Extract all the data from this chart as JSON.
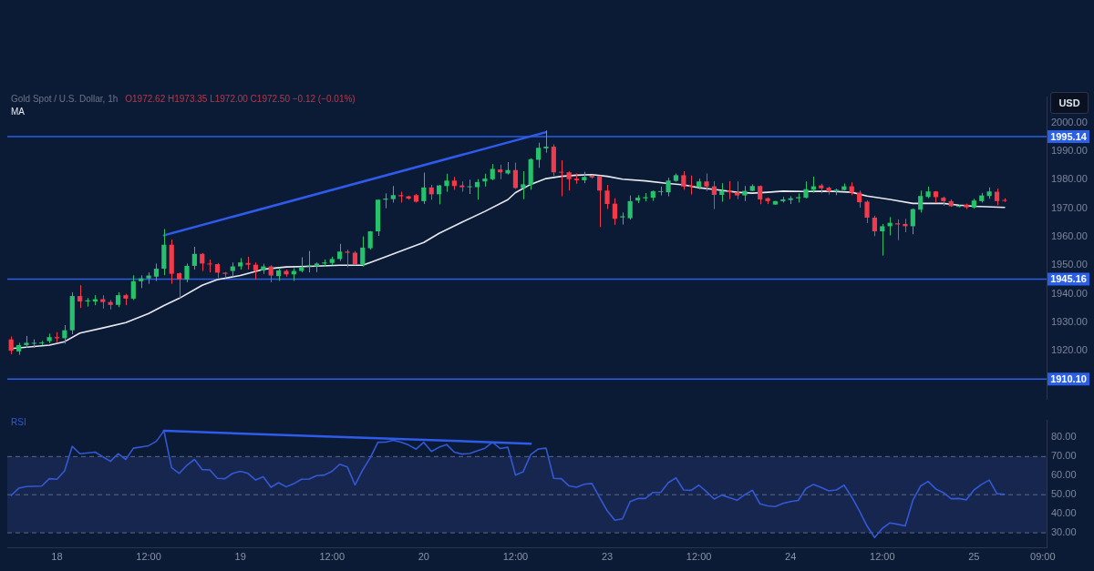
{
  "chart_data": [
    {
      "type": "candlestick",
      "title": "Gold Spot / U.S. Dollar, 1h",
      "annotations": [
        "O1972.62 H1973.35 L1972.00 C1972.50 −0.12 (−0.01%)"
      ],
      "ylabel": "USD",
      "categories": [
        null,
        null,
        null,
        null,
        null,
        null,
        null,
        null,
        null,
        null,
        null,
        null,
        null,
        null,
        null,
        null,
        null,
        null,
        null,
        null,
        null,
        null,
        null,
        null,
        null,
        null,
        null,
        null,
        null,
        null,
        null,
        null,
        null,
        null,
        null,
        null,
        null,
        null,
        null,
        null,
        null,
        null,
        null,
        null,
        null,
        null,
        null,
        null,
        null,
        null,
        null,
        null,
        null,
        null,
        null,
        null,
        null,
        null,
        null,
        null,
        null,
        null,
        null,
        null,
        null,
        null,
        null,
        null,
        null,
        null,
        null,
        null,
        null,
        null,
        null,
        null,
        null,
        null,
        null,
        null,
        null,
        null,
        null,
        null,
        null,
        null,
        null,
        null,
        null,
        null,
        null,
        null,
        null,
        null,
        null,
        null,
        null,
        null,
        null,
        null,
        null,
        null,
        null,
        null,
        null,
        null,
        null,
        null,
        null,
        null,
        null,
        null,
        null,
        null,
        null,
        null,
        null,
        null,
        null,
        null,
        null,
        null,
        null,
        null,
        null,
        null,
        null,
        null,
        null,
        null,
        null,
        null,
        null,
        null,
        null,
        null
      ],
      "ohlc": [
        [
          1924.0,
          1925.0,
          1918.8,
          1920.0
        ],
        [
          1919.8,
          1922.8,
          1918.6,
          1922.0
        ],
        [
          1922.0,
          1925.2,
          1921.0,
          1922.8
        ],
        [
          1922.5,
          1924.0,
          1921.0,
          1922.8
        ],
        [
          1922.6,
          1923.5,
          1922.0,
          1922.9
        ],
        [
          1923.4,
          1926.0,
          1922.7,
          1924.8
        ],
        [
          1924.8,
          1926.5,
          1923.0,
          1924.4
        ],
        [
          1924.4,
          1929.0,
          1922.5,
          1927.2
        ],
        [
          1927.2,
          1940.5,
          1925.8,
          1939.2
        ],
        [
          1939.2,
          1943.0,
          1935.0,
          1937.3
        ],
        [
          1937.3,
          1938.5,
          1935.5,
          1937.7
        ],
        [
          1937.3,
          1939.5,
          1936.0,
          1938.1
        ],
        [
          1938.1,
          1939.5,
          1934.8,
          1937.1
        ],
        [
          1937.1,
          1937.8,
          1934.5,
          1936.1
        ],
        [
          1936.1,
          1940.5,
          1935.3,
          1939.5
        ],
        [
          1939.5,
          1940.0,
          1936.0,
          1938.3
        ],
        [
          1938.3,
          1946.5,
          1937.8,
          1944.4
        ],
        [
          1944.4,
          1946.5,
          1942.0,
          1945.4
        ],
        [
          1945.4,
          1947.5,
          1943.5,
          1946.4
        ],
        [
          1946.0,
          1950.6,
          1944.5,
          1948.8
        ],
        [
          1948.8,
          1962.7,
          1946.5,
          1957.2
        ],
        [
          1957.2,
          1959.0,
          1943.5,
          1947.0
        ],
        [
          1947.2,
          1947.5,
          1938.5,
          1945.0
        ],
        [
          1945.0,
          1950.6,
          1944.0,
          1949.8
        ],
        [
          1949.8,
          1956.5,
          1948.5,
          1954.0
        ],
        [
          1954.0,
          1954.3,
          1948.0,
          1950.6
        ],
        [
          1950.6,
          1952.0,
          1947.5,
          1950.4
        ],
        [
          1950.4,
          1950.8,
          1945.5,
          1947.4
        ],
        [
          1947.4,
          1947.6,
          1945.5,
          1947.0
        ],
        [
          1948.0,
          1951.0,
          1946.0,
          1949.6
        ],
        [
          1949.6,
          1952.5,
          1948.5,
          1951.0
        ],
        [
          1950.8,
          1953.0,
          1948.5,
          1950.2
        ],
        [
          1950.2,
          1951.0,
          1945.0,
          1948.2
        ],
        [
          1948.2,
          1950.5,
          1947.0,
          1949.6
        ],
        [
          1949.6,
          1950.0,
          1944.0,
          1946.4
        ],
        [
          1946.2,
          1949.0,
          1944.5,
          1948.2
        ],
        [
          1948.0,
          1948.5,
          1946.0,
          1946.8
        ],
        [
          1946.8,
          1949.0,
          1944.5,
          1948.0
        ],
        [
          1948.0,
          1952.8,
          1947.5,
          1949.4
        ],
        [
          1949.6,
          1955.0,
          1947.5,
          1950.0
        ],
        [
          1949.6,
          1951.0,
          1947.6,
          1950.6
        ],
        [
          1950.6,
          1952.0,
          1949.5,
          1951.0
        ],
        [
          1950.8,
          1953.0,
          1950.0,
          1952.2
        ],
        [
          1952.2,
          1957.5,
          1951.5,
          1954.8
        ],
        [
          1954.8,
          1955.5,
          1949.3,
          1954.4
        ],
        [
          1954.4,
          1955.0,
          1950.0,
          1950.4
        ],
        [
          1950.2,
          1960.1,
          1949.5,
          1956.2
        ],
        [
          1956.0,
          1962.0,
          1955.5,
          1961.9
        ],
        [
          1961.9,
          1973.0,
          1960.3,
          1973.0
        ],
        [
          1973.0,
          1975.2,
          1970.0,
          1973.4
        ],
        [
          1973.2,
          1977.8,
          1972.0,
          1974.6
        ],
        [
          1974.6,
          1975.8,
          1972.0,
          1974.2
        ],
        [
          1974.2,
          1974.4,
          1973.0,
          1973.4
        ],
        [
          1974.6,
          1975.0,
          1972.0,
          1972.3
        ],
        [
          1972.5,
          1982.5,
          1971.5,
          1977.3
        ],
        [
          1977.3,
          1978.2,
          1973.0,
          1974.9
        ],
        [
          1974.9,
          1978.2,
          1971.4,
          1978.0
        ],
        [
          1977.8,
          1982.1,
          1975.8,
          1979.7
        ],
        [
          1979.7,
          1981.0,
          1976.5,
          1977.8
        ],
        [
          1978.0,
          1979.4,
          1975.8,
          1977.4
        ],
        [
          1977.4,
          1980.0,
          1975.0,
          1977.7
        ],
        [
          1977.4,
          1980.2,
          1973.0,
          1979.2
        ],
        [
          1979.4,
          1982.1,
          1977.6,
          1980.4
        ],
        [
          1980.2,
          1985.5,
          1979.8,
          1983.8
        ],
        [
          1983.6,
          1985.3,
          1980.2,
          1982.6
        ],
        [
          1982.2,
          1986.2,
          1981.8,
          1983.4
        ],
        [
          1983.4,
          1986.0,
          1976.8,
          1977.1
        ],
        [
          1977.1,
          1983.0,
          1973.2,
          1978.4
        ],
        [
          1978.2,
          1987.5,
          1976.5,
          1987.2
        ],
        [
          1987.0,
          1993.0,
          1984.2,
          1991.2
        ],
        [
          1991.0,
          1997.3,
          1989.5,
          1991.6
        ],
        [
          1991.6,
          1992.4,
          1981.3,
          1982.6
        ],
        [
          1982.8,
          1986.8,
          1974.2,
          1982.6
        ],
        [
          1982.6,
          1982.9,
          1976.2,
          1980.2
        ],
        [
          1980.4,
          1982.2,
          1978.6,
          1979.8
        ],
        [
          1979.8,
          1982.8,
          1978.8,
          1981.0
        ],
        [
          1981.4,
          1981.6,
          1980.4,
          1980.8
        ],
        [
          1981.2,
          1981.4,
          1963.4,
          1976.2
        ],
        [
          1976.2,
          1978.2,
          1969.7,
          1971.5
        ],
        [
          1971.6,
          1973.5,
          1964.2,
          1966.3
        ],
        [
          1966.8,
          1968.5,
          1964.3,
          1967.2
        ],
        [
          1966.5,
          1974.5,
          1966.0,
          1972.5
        ],
        [
          1972.7,
          1974.6,
          1971.8,
          1973.7
        ],
        [
          1973.5,
          1975.3,
          1972.4,
          1973.9
        ],
        [
          1973.7,
          1976.2,
          1972.6,
          1976.0
        ],
        [
          1975.9,
          1977.6,
          1974.5,
          1976.0
        ],
        [
          1975.6,
          1980.7,
          1974.2,
          1979.7
        ],
        [
          1979.6,
          1982.2,
          1979.3,
          1981.6
        ],
        [
          1981.6,
          1983.0,
          1976.5,
          1977.6
        ],
        [
          1978.0,
          1981.5,
          1974.8,
          1977.6
        ],
        [
          1977.4,
          1980.4,
          1976.6,
          1979.4
        ],
        [
          1979.4,
          1982.2,
          1976.0,
          1977.6
        ],
        [
          1977.7,
          1979.5,
          1969.7,
          1974.7
        ],
        [
          1974.7,
          1978.8,
          1972.3,
          1976.1
        ],
        [
          1976.2,
          1979.5,
          1973.2,
          1975.6
        ],
        [
          1975.6,
          1979.4,
          1973.2,
          1974.5
        ],
        [
          1974.5,
          1977.8,
          1972.5,
          1976.1
        ],
        [
          1976.1,
          1978.4,
          1976.0,
          1977.8
        ],
        [
          1977.8,
          1978.0,
          1971.4,
          1973.1
        ],
        [
          1973.5,
          1973.8,
          1971.5,
          1972.5
        ],
        [
          1971.3,
          1972.6,
          1971.2,
          1972.5
        ],
        [
          1972.5,
          1974.0,
          1972.0,
          1973.1
        ],
        [
          1972.9,
          1974.2,
          1971.5,
          1973.5
        ],
        [
          1973.5,
          1975.2,
          1972.0,
          1973.9
        ],
        [
          1973.7,
          1979.4,
          1973.5,
          1976.7
        ],
        [
          1976.5,
          1981.1,
          1975.4,
          1977.7
        ],
        [
          1978.0,
          1978.6,
          1975.2,
          1977.0
        ],
        [
          1977.2,
          1977.6,
          1974.8,
          1975.9
        ],
        [
          1975.9,
          1976.9,
          1974.6,
          1976.5
        ],
        [
          1976.4,
          1978.7,
          1976.3,
          1977.7
        ],
        [
          1977.7,
          1979.1,
          1974.6,
          1975.5
        ],
        [
          1975.5,
          1976.2,
          1970.2,
          1972.1
        ],
        [
          1972.3,
          1972.8,
          1964.8,
          1966.7
        ],
        [
          1966.7,
          1967.4,
          1960.2,
          1961.9
        ],
        [
          1961.9,
          1964.5,
          1953.4,
          1963.7
        ],
        [
          1963.7,
          1966.9,
          1960.5,
          1964.9
        ],
        [
          1964.7,
          1966.1,
          1958.8,
          1964.3
        ],
        [
          1964.5,
          1966.3,
          1961.6,
          1963.7
        ],
        [
          1963.7,
          1969.9,
          1960.9,
          1969.7
        ],
        [
          1969.5,
          1976.2,
          1968.5,
          1974.3
        ],
        [
          1974.0,
          1977.6,
          1973.5,
          1975.9
        ],
        [
          1975.9,
          1976.1,
          1971.8,
          1973.9
        ],
        [
          1973.7,
          1974.1,
          1970.9,
          1972.5
        ],
        [
          1972.5,
          1973.1,
          1970.5,
          1970.7
        ],
        [
          1970.7,
          1971.1,
          1970.3,
          1970.8
        ],
        [
          1971.3,
          1971.6,
          1969.7,
          1970.3
        ],
        [
          1970.3,
          1973.3,
          1969.9,
          1972.7
        ],
        [
          1972.5,
          1975.4,
          1972.0,
          1974.5
        ],
        [
          1974.3,
          1977.3,
          1973.3,
          1975.9
        ],
        [
          1975.8,
          1976.9,
          1971.1,
          1972.5
        ],
        [
          1972.9,
          1973.5,
          1972.2,
          1972.6
        ],
        null,
        null,
        null,
        null,
        null
      ],
      "colors": [
        "#f23a4a",
        "#26c26b",
        "#26c26b",
        "#26c26b",
        "#26c26b",
        "#26c26b",
        "#f23a4a",
        "#26c26b",
        "#26c26b",
        "#f23a4a",
        "#26c26b",
        "#26c26b",
        "#f23a4a",
        "#f23a4a",
        "#26c26b",
        "#f23a4a",
        "#26c26b",
        "#26c26b",
        "#26c26b",
        "#26c26b",
        "#26c26b",
        "#f23a4a",
        "#f23a4a",
        "#26c26b",
        "#26c26b",
        "#f23a4a",
        "#f23a4a",
        "#f23a4a",
        "#f23a4a",
        "#26c26b",
        "#26c26b",
        "#f23a4a",
        "#f23a4a",
        "#26c26b",
        "#f23a4a",
        "#26c26b",
        "#f23a4a",
        "#26c26b",
        "#26c26b",
        "#26c26b",
        "#26c26b",
        "#26c26b",
        "#26c26b",
        "#26c26b",
        "#f23a4a",
        "#f23a4a",
        "#26c26b",
        "#26c26b",
        "#26c26b",
        "#26c26b",
        "#26c26b",
        "#f23a4a",
        "#f23a4a",
        "#f23a4a",
        "#26c26b",
        "#f23a4a",
        "#26c26b",
        "#26c26b",
        "#f23a4a",
        "#f23a4a",
        "#26c26b",
        "#26c26b",
        "#26c26b",
        "#26c26b",
        "#f23a4a",
        "#26c26b",
        "#f23a4a",
        "#26c26b",
        "#26c26b",
        "#26c26b",
        "#26c26b",
        "#f23a4a",
        "#f23a4a",
        "#f23a4a",
        "#f23a4a",
        "#26c26b",
        "#f23a4a",
        "#f23a4a",
        "#f23a4a",
        "#f23a4a",
        "#26c26b",
        "#26c26b",
        "#26c26b",
        "#26c26b",
        "#26c26b",
        "#26c26b",
        "#26c26b",
        "#26c26b",
        "#f23a4a",
        "#f23a4a",
        "#26c26b",
        "#f23a4a",
        "#f23a4a",
        "#26c26b",
        "#f23a4a",
        "#f23a4a",
        "#26c26b",
        "#26c26b",
        "#f23a4a",
        "#f23a4a",
        "#26c26b",
        "#26c26b",
        "#26c26b",
        "#26c26b",
        "#26c26b",
        "#26c26b",
        "#f23a4a",
        "#f23a4a",
        "#26c26b",
        "#26c26b",
        "#f23a4a",
        "#f23a4a",
        "#f23a4a",
        "#f23a4a",
        "#26c26b",
        "#26c26b",
        "#f23a4a",
        "#f23a4a",
        "#26c26b",
        "#26c26b",
        "#26c26b",
        "#f23a4a",
        "#f23a4a",
        "#f23a4a",
        "#26c26b",
        "#f23a4a",
        "#26c26b",
        "#26c26b",
        "#26c26b",
        "#f23a4a",
        "#f23a4a",
        null,
        null,
        null,
        null,
        null
      ],
      "series": [
        {
          "name": "MA",
          "type": "line",
          "color": "#e8e9ef",
          "values": [
            1920.8,
            null,
            null,
            null,
            null,
            1922.0,
            null,
            1923.2,
            null,
            1926.2,
            null,
            null,
            1928.0,
            null,
            null,
            1929.9,
            null,
            null,
            1933.1,
            null,
            1935.9,
            null,
            1938.4,
            null,
            null,
            1943.0,
            null,
            1945.0,
            null,
            null,
            1946.4,
            null,
            null,
            1948.6,
            null,
            null,
            1949.4,
            null,
            null,
            1949.6,
            null,
            null,
            null,
            1950.0,
            null,
            null,
            1950.0,
            1951.0,
            null,
            1953.0,
            null,
            null,
            1956.0,
            null,
            1958.0,
            null,
            1961.2,
            null,
            null,
            1965.1,
            null,
            null,
            1968.9,
            null,
            null,
            1973.0,
            1975.5,
            null,
            1978.4,
            null,
            1980.4,
            null,
            1981.2,
            null,
            1981.6,
            null,
            1981.8,
            null,
            1981.2,
            null,
            1980.2,
            null,
            null,
            1979.6,
            null,
            null,
            1978.7,
            null,
            1978.2,
            null,
            1977.2,
            null,
            1976.6,
            null,
            null,
            1975.6,
            null,
            1975.3,
            null,
            1975.6,
            null,
            1976.0,
            null,
            null,
            1975.9,
            null,
            null,
            1976.0,
            null,
            null,
            1975.6,
            null,
            1974.3,
            null,
            null,
            1973.1,
            null,
            null,
            1971.7,
            null,
            null,
            null,
            1971.7,
            null,
            1971.1,
            null,
            1970.7,
            null,
            null,
            null,
            1970.3,
            null,
            null,
            null,
            null,
            null
          ]
        },
        {
          "type": "line",
          "color": "#2f5bea",
          "values": [
            null,
            null,
            null,
            null,
            null,
            null,
            null,
            null,
            null,
            null,
            null,
            null,
            null,
            null,
            null,
            null,
            null,
            null,
            null,
            null,
            1960.5,
            null,
            null,
            null,
            null,
            null,
            null,
            null,
            null,
            null,
            null,
            null,
            null,
            null,
            null,
            null,
            null,
            null,
            null,
            null,
            null,
            null,
            null,
            null,
            null,
            null,
            null,
            null,
            null,
            null,
            null,
            null,
            null,
            null,
            null,
            null,
            null,
            null,
            null,
            null,
            null,
            null,
            null,
            null,
            null,
            null,
            null,
            null,
            null,
            null,
            1996.7,
            null,
            null,
            null,
            null,
            null,
            null,
            null,
            null,
            null,
            null,
            null,
            null,
            null,
            null,
            null,
            null,
            null,
            null,
            null,
            null,
            null,
            null,
            null,
            null,
            null,
            null,
            null,
            null,
            null,
            null,
            null,
            null,
            null,
            null,
            null,
            null,
            null,
            null,
            null,
            null,
            null,
            null,
            null,
            null,
            null,
            null,
            null,
            null,
            null,
            null,
            null,
            null,
            null,
            null,
            null,
            null,
            null,
            null,
            null,
            null,
            null,
            null,
            null,
            null,
            null
          ]
        }
      ],
      "ylim": [
        1903,
        2009
      ],
      "yticks": [
        {
          "value": 1920,
          "label": "1920.00"
        },
        {
          "value": 1930,
          "label": "1930.00"
        },
        {
          "value": 1940,
          "label": "1940.00"
        },
        {
          "value": 1950,
          "label": "1950.00"
        },
        {
          "value": 1960,
          "label": "1960.00"
        },
        {
          "value": 1970,
          "label": "1970.00"
        },
        {
          "value": 1980,
          "label": "1980.00"
        },
        {
          "value": 1990,
          "label": "1990.00"
        },
        {
          "value": 2000,
          "label": "2000.00"
        }
      ],
      "ref_lines": [
        {
          "axis": "y",
          "value": 1995.14,
          "label": "1995.14",
          "color": "#2a5fe6"
        },
        {
          "axis": "y",
          "value": 1945.16,
          "label": "1945.16",
          "color": "#2a5fe6"
        },
        {
          "axis": "y",
          "value": 1910.1,
          "label": "1910.10",
          "color": "#2a5fe6"
        }
      ],
      "legend": "top left",
      "tick_labels": "y"
    },
    {
      "type": "line",
      "categories": [
        null,
        null,
        null,
        null,
        null,
        null,
        "18",
        null,
        null,
        null,
        null,
        null,
        null,
        null,
        null,
        null,
        null,
        null,
        "12:00",
        null,
        null,
        null,
        null,
        null,
        null,
        null,
        null,
        null,
        null,
        null,
        "19",
        null,
        null,
        null,
        null,
        null,
        null,
        null,
        null,
        null,
        null,
        null,
        "12:00",
        null,
        null,
        null,
        null,
        null,
        null,
        null,
        null,
        null,
        null,
        null,
        "20",
        null,
        null,
        null,
        null,
        null,
        null,
        null,
        null,
        null,
        null,
        null,
        "12:00",
        null,
        null,
        null,
        null,
        null,
        null,
        null,
        null,
        null,
        null,
        null,
        "23",
        null,
        null,
        null,
        null,
        null,
        null,
        null,
        null,
        null,
        null,
        null,
        "12:00",
        null,
        null,
        null,
        null,
        null,
        null,
        null,
        null,
        null,
        null,
        null,
        "24",
        null,
        null,
        null,
        null,
        null,
        null,
        null,
        null,
        null,
        null,
        null,
        "12:00",
        null,
        null,
        null,
        null,
        null,
        null,
        null,
        null,
        null,
        null,
        null,
        "25",
        null,
        null,
        null,
        null,
        null,
        null,
        null,
        null,
        "09:00"
      ],
      "series": [
        {
          "name": "RSI",
          "color": "#3358d4",
          "values": [
            49.6,
            53.4,
            54.3,
            null,
            54.5,
            58.4,
            58.1,
            62.5,
            75.4,
            71.5,
            null,
            72.3,
            null,
            67.5,
            71.5,
            68.5,
            74.4,
            null,
            75.7,
            78.0,
            83.5,
            64.1,
            61.2,
            65.4,
            68.5,
            63.2,
            63.0,
            58.6,
            58.4,
            61.2,
            62.3,
            61.2,
            57.7,
            59.4,
            53.9,
            56.3,
            54.1,
            55.8,
            58.1,
            58.2,
            60.0,
            60.3,
            62.3,
            66.0,
            64.6,
            55.1,
            62.9,
            69.4,
            77.5,
            77.6,
            78.5,
            77.6,
            76.1,
            73.9,
            77.5,
            72.7,
            74.9,
            76.3,
            72.3,
            71.3,
            71.6,
            73.0,
            74.4,
            77.5,
            74.2,
            74.9,
            60.3,
            62.0,
            71.1,
            74.0,
            74.4,
            58.6,
            58.4,
            54.6,
            53.9,
            55.5,
            55.9,
            48.6,
            41.6,
            36.6,
            37.3,
            46.4,
            48.0,
            48.0,
            51.2,
            51.2,
            56.3,
            58.8,
            52.5,
            52.3,
            55.0,
            51.6,
            47.7,
            49.8,
            48.4,
            47.1,
            50.0,
            52.3,
            45.2,
            44.1,
            43.8,
            45.4,
            46.4,
            47.0,
            53.2,
            55.4,
            53.8,
            52.0,
            52.5,
            55.0,
            48.8,
            41.6,
            33.6,
            27.5,
            32.3,
            35.2,
            34.5,
            33.6,
            47.0,
            54.5,
            57.0,
            53.0,
            51.1,
            47.9,
            48.0,
            47.3,
            52.5,
            55.4,
            57.7,
            50.5,
            50.2,
            null,
            null,
            null,
            null,
            null
          ]
        },
        {
          "type": "line",
          "color": "#2f5bea",
          "values": [
            null,
            null,
            null,
            null,
            null,
            null,
            null,
            null,
            null,
            null,
            null,
            null,
            null,
            null,
            null,
            null,
            null,
            null,
            null,
            null,
            83.5,
            null,
            null,
            null,
            null,
            null,
            null,
            null,
            null,
            null,
            null,
            null,
            null,
            null,
            null,
            null,
            null,
            null,
            null,
            null,
            null,
            null,
            null,
            null,
            null,
            null,
            null,
            null,
            null,
            null,
            null,
            null,
            null,
            null,
            null,
            null,
            null,
            null,
            null,
            null,
            null,
            null,
            null,
            null,
            null,
            null,
            null,
            null,
            76.8,
            null,
            null,
            null,
            null,
            null,
            null,
            null,
            null,
            null,
            null,
            null,
            null,
            null,
            null,
            null,
            null,
            null,
            null,
            null,
            null,
            null,
            null,
            null,
            null,
            null,
            null,
            null,
            null,
            null,
            null,
            null,
            null,
            null,
            null,
            null,
            null,
            null,
            null,
            null,
            null,
            null,
            null,
            null,
            null,
            null,
            null,
            null,
            null,
            null,
            null,
            null,
            null,
            null,
            null,
            null,
            null,
            null,
            null,
            null,
            null,
            null,
            null,
            null,
            null,
            null,
            null,
            null
          ]
        }
      ],
      "ylim": [
        22,
        89
      ],
      "yticks": [
        {
          "value": 30,
          "label": "30.00"
        },
        {
          "value": 40,
          "label": "40.00"
        },
        {
          "value": 50,
          "label": "50.00"
        },
        {
          "value": 60,
          "label": "60.00"
        },
        {
          "value": 70,
          "label": "70.00"
        },
        {
          "value": 80,
          "label": "80.00"
        }
      ],
      "ref_lines": [
        {
          "axis": "y",
          "value": 30,
          "color": "#5d6984",
          "line_style": "dashed"
        },
        {
          "axis": "y",
          "value": 50,
          "color": "#5d6984",
          "line_style": "dashed"
        },
        {
          "axis": "y",
          "value": 70,
          "color": "#5d6984",
          "line_style": "dashed"
        }
      ],
      "bands": [
        {
          "axis": "y",
          "from": 30,
          "to": 70,
          "color": "#17264f"
        }
      ],
      "legend": "top left"
    }
  ]
}
